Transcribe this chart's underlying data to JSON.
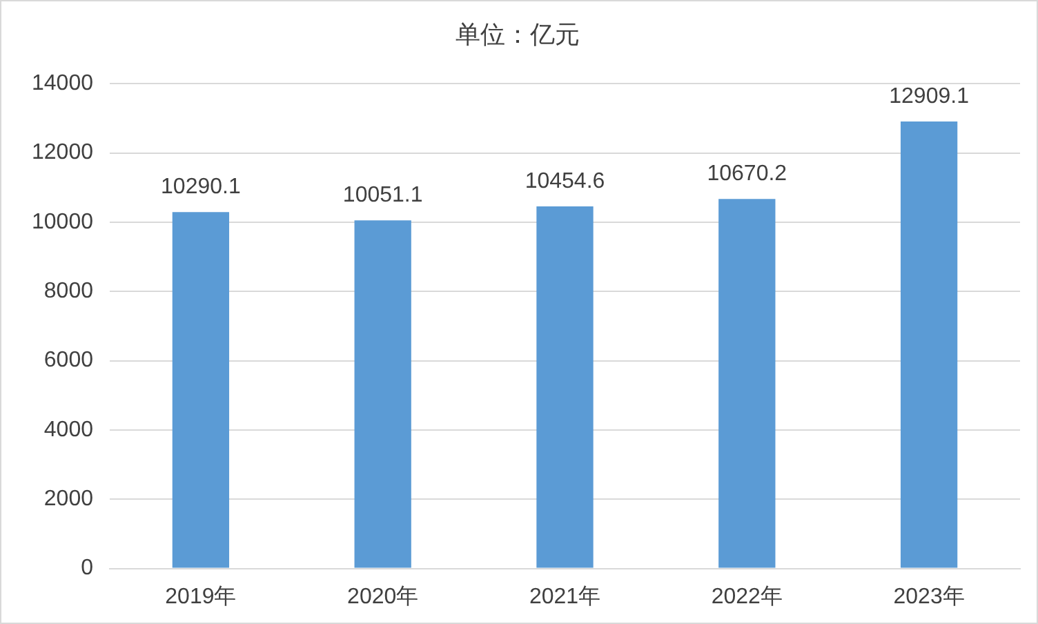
{
  "chart_data": {
    "type": "bar",
    "title": "单位：亿元",
    "categories": [
      "2019年",
      "2020年",
      "2021年",
      "2022年",
      "2023年"
    ],
    "values": [
      10290.1,
      10051.1,
      10454.6,
      10670.2,
      12909.1
    ],
    "color": "#5b9bd5",
    "ylim": [
      0,
      14000
    ],
    "yticks": [
      0,
      2000,
      4000,
      6000,
      8000,
      10000,
      12000,
      14000
    ],
    "grid": "y",
    "data_labels": true,
    "legend": false
  }
}
